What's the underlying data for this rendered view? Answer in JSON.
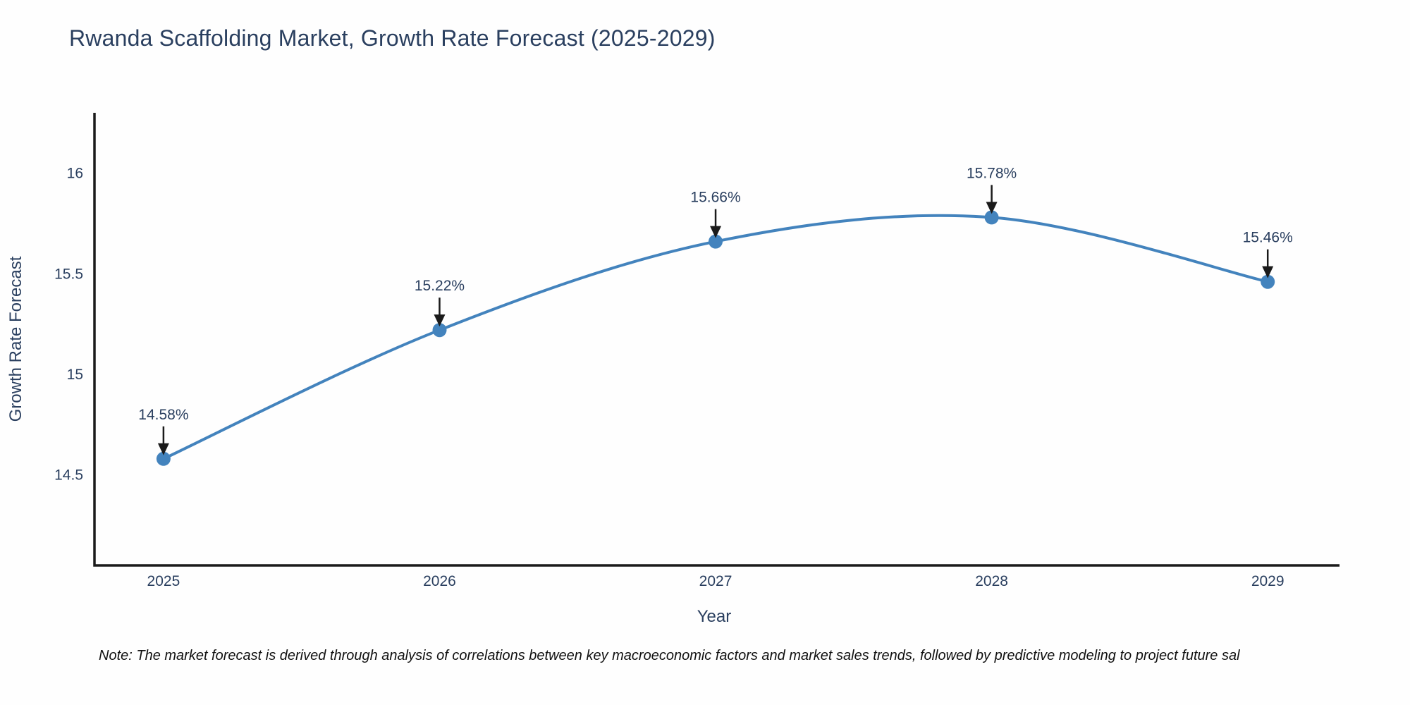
{
  "page": {
    "title": "Rwanda Scaffolding Market, Growth Rate Forecast (2025-2029)",
    "note": "Note: The market forecast is derived through analysis of correlations between key macroeconomic factors and market sales trends, followed by predictive modeling to project future sal"
  },
  "chart_data": {
    "type": "line",
    "line_shape": "spline",
    "title": "Rwanda Scaffolding Market, Growth Rate Forecast (2025-2029)",
    "xlabel": "Year",
    "ylabel": "Growth Rate Forecast",
    "x": [
      2025,
      2026,
      2027,
      2028,
      2029
    ],
    "x_labels": [
      "2025",
      "2026",
      "2027",
      "2028",
      "2029"
    ],
    "series": [
      {
        "name": "Growth Rate Forecast",
        "values": [
          14.58,
          15.22,
          15.66,
          15.78,
          15.46
        ]
      }
    ],
    "point_labels": [
      "14.58%",
      "15.22%",
      "15.66%",
      "15.78%",
      "15.46%"
    ],
    "yticks": [
      14.5,
      15,
      15.5,
      16
    ],
    "ytick_labels": [
      "14.5",
      "15",
      "15.5",
      "16"
    ],
    "ylim": [
      14.05,
      16.3
    ],
    "xlim": [
      2024.75,
      2029.26
    ],
    "grid": false,
    "legend": "none",
    "annotation_arrows": true,
    "colors": {
      "line": "#4383bd",
      "marker": "#4383bd",
      "arrow": "#1a1a1a",
      "text": "#2a3f5f",
      "axis": "#1a1a1a",
      "note_text": "#111111",
      "background": "#fefefe"
    }
  }
}
